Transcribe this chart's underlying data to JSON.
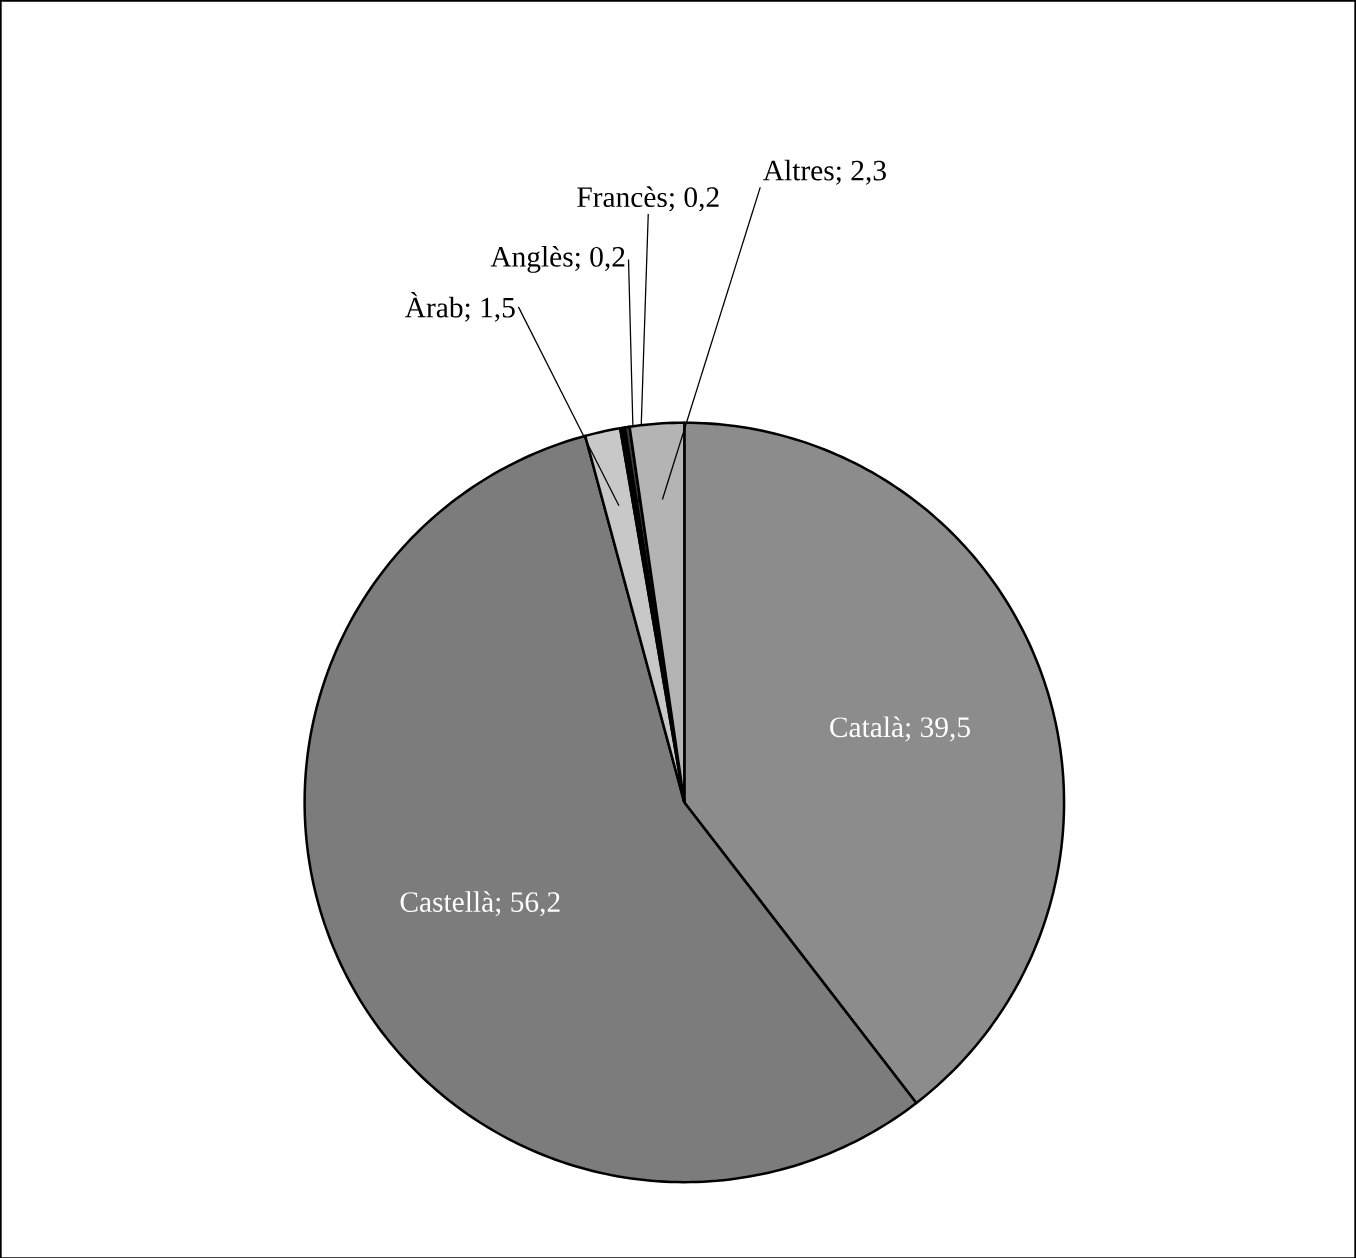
{
  "chart_data": {
    "type": "pie",
    "categories": [
      "Català",
      "Castellà",
      "Àrab",
      "Anglès",
      "Francès",
      "Altres"
    ],
    "values": [
      39.5,
      56.2,
      1.5,
      0.2,
      0.2,
      2.3
    ],
    "value_labels": [
      "; 39,5",
      "; 56,2",
      "; 1,5",
      "; 0,2",
      "; 0,2",
      "; 2,3"
    ],
    "colors": [
      "#8c8c8c",
      "#7c7c7c",
      "#c8c8c8",
      "#000000",
      "#3a3a3a",
      "#b4b4b4"
    ]
  }
}
